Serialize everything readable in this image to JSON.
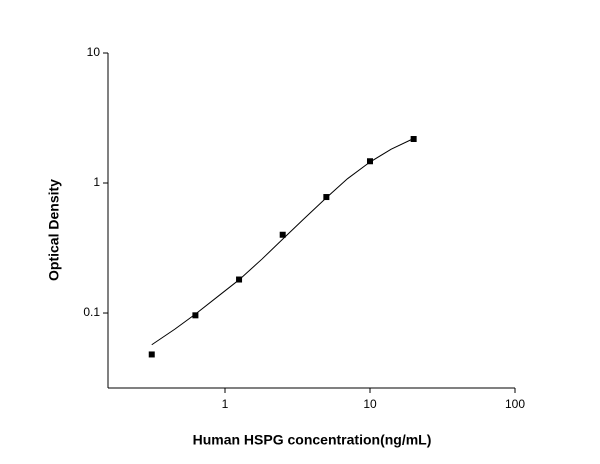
{
  "chart_data": {
    "type": "scatter",
    "x_label": "Human HSPG concentration(ng/mL)",
    "y_label": "Optical Density",
    "x": [
      0.3125,
      0.625,
      1.25,
      2.5,
      5,
      10,
      20
    ],
    "values": [
      0.048,
      0.096,
      0.181,
      0.4,
      0.78,
      1.47,
      2.18
    ],
    "color": "#000000",
    "curve": {
      "x": [
        0.3125,
        0.45,
        0.625,
        0.9,
        1.25,
        1.8,
        2.5,
        3.5,
        5,
        7,
        10,
        14,
        20
      ],
      "values": [
        0.057,
        0.075,
        0.098,
        0.135,
        0.18,
        0.26,
        0.37,
        0.53,
        0.77,
        1.08,
        1.45,
        1.82,
        2.2
      ],
      "color": "#000000"
    },
    "log_x": true,
    "log_y": true,
    "xlim": [
      0.156,
      100
    ],
    "ylim": [
      0.0265,
      10
    ],
    "xticks": [
      1,
      10,
      100
    ],
    "yticks": [
      0.1,
      1,
      10
    ],
    "grid": false
  }
}
